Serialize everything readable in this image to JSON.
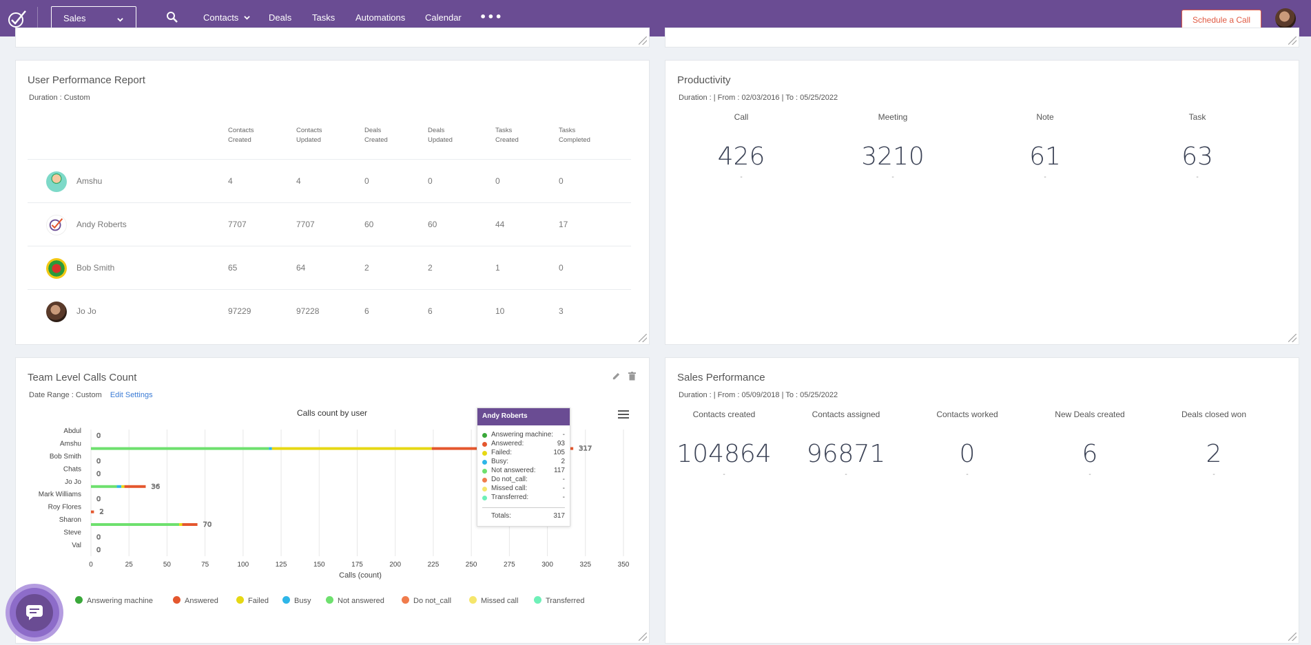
{
  "nav": {
    "module": "Sales",
    "links": [
      "Contacts",
      "Deals",
      "Tasks",
      "Automations",
      "Calendar"
    ],
    "cta": "Schedule a Call"
  },
  "user_performance": {
    "title": "User Performance Report",
    "duration": "Duration : Custom",
    "columns": [
      [
        "Contacts",
        "Created"
      ],
      [
        "Contacts",
        "Updated"
      ],
      [
        "Deals",
        "Created"
      ],
      [
        "Deals",
        "Updated"
      ],
      [
        "Tasks",
        "Created"
      ],
      [
        "Tasks",
        "Completed"
      ]
    ],
    "rows": [
      {
        "name": "Amshu",
        "values": [
          "4",
          "4",
          "0",
          "0",
          "0",
          "0"
        ]
      },
      {
        "name": "Andy Roberts",
        "values": [
          "7707",
          "7707",
          "60",
          "60",
          "44",
          "17"
        ]
      },
      {
        "name": "Bob Smith",
        "values": [
          "65",
          "64",
          "2",
          "2",
          "1",
          "0"
        ]
      },
      {
        "name": "Jo Jo",
        "values": [
          "97229",
          "97228",
          "6",
          "6",
          "10",
          "3"
        ]
      }
    ]
  },
  "productivity": {
    "title": "Productivity",
    "duration": "Duration : | From : 02/03/2016 | To : 05/25/2022",
    "stats": [
      {
        "label": "Call",
        "value": "426",
        "sub": "-"
      },
      {
        "label": "Meeting",
        "value": "3210",
        "sub": "-"
      },
      {
        "label": "Note",
        "value": "61",
        "sub": "-"
      },
      {
        "label": "Task",
        "value": "63",
        "sub": "-"
      }
    ]
  },
  "team_calls": {
    "title": "Team Level Calls Count",
    "date_range": "Date Range : Custom",
    "edit_settings": "Edit Settings"
  },
  "sales_performance": {
    "title": "Sales Performance",
    "duration": "Duration : | From : 05/09/2018 | To : 05/25/2022",
    "stats": [
      {
        "label": "Contacts created",
        "value": "104864",
        "sub": "-"
      },
      {
        "label": "Contacts assigned",
        "value": "96871",
        "sub": "-"
      },
      {
        "label": "Contacts worked",
        "value": "0",
        "sub": "-"
      },
      {
        "label": "New Deals created",
        "value": "6",
        "sub": "-"
      },
      {
        "label": "Deals closed won",
        "value": "2",
        "sub": "-"
      }
    ]
  },
  "tooltip": {
    "title": "Andy Roberts",
    "rows": [
      {
        "label": "Answering machine:",
        "value": "-",
        "color": "#3aa83a"
      },
      {
        "label": "Answered:",
        "value": "93",
        "color": "#e4572e"
      },
      {
        "label": "Failed:",
        "value": "105",
        "color": "#e6d814"
      },
      {
        "label": "Busy:",
        "value": "2",
        "color": "#2eb6e8"
      },
      {
        "label": "Not answered:",
        "value": "117",
        "color": "#6ee06e"
      },
      {
        "label": "Do not_call:",
        "value": "-",
        "color": "#f07c4c"
      },
      {
        "label": "Missed call:",
        "value": "-",
        "color": "#f5e66b"
      },
      {
        "label": "Transferred:",
        "value": "-",
        "color": "#6ef0b8"
      }
    ],
    "total_label": "Totals:",
    "total_value": "317"
  },
  "chart_data": {
    "type": "bar",
    "orientation": "horizontal",
    "stacked": true,
    "title": "Calls count by user",
    "xlabel": "Calls (count)",
    "xlim": [
      0,
      350
    ],
    "xticks": [
      0,
      25,
      50,
      75,
      100,
      125,
      150,
      175,
      200,
      225,
      250,
      275,
      300,
      325,
      350
    ],
    "categories": [
      "Abdul",
      "Amshu",
      "Bob Smith",
      "Chats",
      "Jo Jo",
      "Mark Williams",
      "Roy Flores",
      "Sharon",
      "Steve",
      "Val"
    ],
    "series": [
      {
        "name": "Answering machine",
        "color": "#3aa83a",
        "values": [
          0,
          0,
          0,
          0,
          0,
          0,
          0,
          0,
          0,
          0
        ]
      },
      {
        "name": "Answered",
        "color": "#e4572e",
        "values": [
          0,
          93,
          0,
          0,
          14,
          0,
          2,
          10,
          0,
          0
        ]
      },
      {
        "name": "Failed",
        "color": "#e6d814",
        "values": [
          0,
          105,
          0,
          0,
          2,
          0,
          0,
          2,
          0,
          0
        ]
      },
      {
        "name": "Busy",
        "color": "#2eb6e8",
        "values": [
          0,
          2,
          0,
          0,
          3,
          0,
          0,
          0,
          0,
          0
        ]
      },
      {
        "name": "Not answered",
        "color": "#6ee06e",
        "values": [
          0,
          117,
          0,
          0,
          17,
          0,
          0,
          58,
          0,
          0
        ]
      },
      {
        "name": "Do not_call",
        "color": "#f07c4c",
        "values": [
          0,
          0,
          0,
          0,
          0,
          0,
          0,
          0,
          0,
          0
        ]
      },
      {
        "name": "Missed call",
        "color": "#f5e66b",
        "values": [
          0,
          0,
          0,
          0,
          0,
          0,
          0,
          0,
          0,
          0
        ]
      },
      {
        "name": "Transferred",
        "color": "#6ef0b8",
        "values": [
          0,
          0,
          0,
          0,
          0,
          0,
          0,
          0,
          0,
          0
        ]
      }
    ],
    "totals": [
      0,
      317,
      0,
      0,
      36,
      0,
      2,
      70,
      0,
      0
    ],
    "grid": true,
    "legend": "bottom"
  }
}
